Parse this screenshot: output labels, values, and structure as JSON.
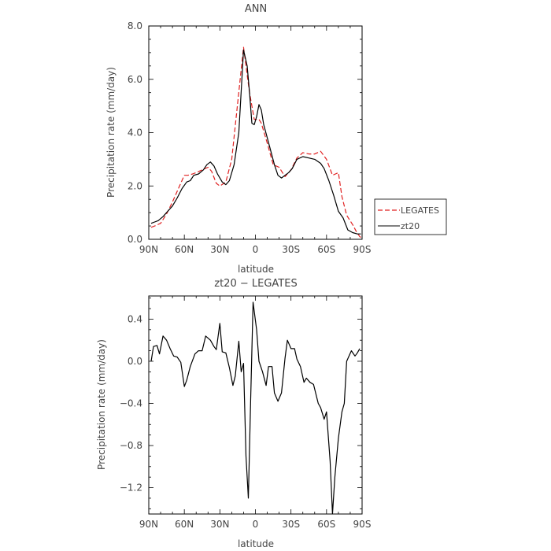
{
  "chart_data": [
    {
      "type": "line",
      "title": "ANN",
      "xlabel": "latitude",
      "ylabel": "Precipitation rate (mm/day)",
      "xlim": [
        90,
        -90
      ],
      "ylim": [
        0,
        8
      ],
      "x_ticks": [
        90,
        60,
        30,
        0,
        -30,
        -60,
        -90
      ],
      "x_tick_labels": [
        "90N",
        "60N",
        "30N",
        "0",
        "30S",
        "60S",
        "90S"
      ],
      "y_ticks": [
        0,
        2,
        4,
        6,
        8
      ],
      "y_tick_labels": [
        "0.0",
        "2.0",
        "4.0",
        "6.0",
        "8.0"
      ],
      "legend": "outside-right",
      "series": [
        {
          "name": "LEGATES",
          "style": "dashed",
          "color": "#e02020",
          "x": [
            88,
            85,
            80,
            75,
            70,
            65,
            60,
            57,
            53,
            50,
            45,
            40,
            37,
            33,
            30,
            25,
            20,
            15,
            10,
            5,
            1,
            -3,
            -5,
            -10,
            -15,
            -20,
            -25,
            -30,
            -35,
            -40,
            -45,
            -50,
            -55,
            -60,
            -65,
            -70,
            -73,
            -77,
            -82,
            -85,
            -88,
            -90
          ],
          "y": [
            0.45,
            0.5,
            0.6,
            0.95,
            1.4,
            1.9,
            2.4,
            2.4,
            2.45,
            2.5,
            2.6,
            2.7,
            2.55,
            2.1,
            2.0,
            2.15,
            3.0,
            5.1,
            7.2,
            5.5,
            4.5,
            4.5,
            4.35,
            3.6,
            2.8,
            2.7,
            2.35,
            2.6,
            3.05,
            3.25,
            3.2,
            3.2,
            3.3,
            3.0,
            2.4,
            2.5,
            1.6,
            0.9,
            0.55,
            0.3,
            0.1,
            0.05
          ]
        },
        {
          "name": "zt20",
          "style": "solid",
          "color": "#000000",
          "x": [
            88,
            85,
            82,
            78,
            74,
            70,
            66,
            62,
            58,
            55,
            52,
            48,
            44,
            41,
            38,
            35,
            32,
            28,
            25,
            22,
            18,
            14,
            10,
            7,
            5,
            3,
            1,
            -1,
            -3,
            -5,
            -7,
            -10,
            -13,
            -16,
            -19,
            -22,
            -25,
            -28,
            -31,
            -35,
            -40,
            -45,
            -50,
            -55,
            -58,
            -62,
            -66,
            -70,
            -74,
            -78,
            -82,
            -86,
            -89
          ],
          "y": [
            0.6,
            0.65,
            0.7,
            0.85,
            1.05,
            1.25,
            1.55,
            1.9,
            2.15,
            2.2,
            2.4,
            2.45,
            2.6,
            2.8,
            2.9,
            2.75,
            2.45,
            2.15,
            2.05,
            2.2,
            2.8,
            4.0,
            7.1,
            6.5,
            5.5,
            4.35,
            4.3,
            4.6,
            5.05,
            4.85,
            4.3,
            3.8,
            3.3,
            2.8,
            2.4,
            2.3,
            2.4,
            2.5,
            2.65,
            3.0,
            3.1,
            3.05,
            3.0,
            2.85,
            2.65,
            2.2,
            1.65,
            1.05,
            0.8,
            0.35,
            0.25,
            0.2,
            0.2
          ]
        }
      ]
    },
    {
      "type": "line",
      "title": "zt20 − LEGATES",
      "xlabel": "latitude",
      "ylabel": "Precipitation rate (mm/day)",
      "xlim": [
        90,
        -90
      ],
      "ylim": [
        -1.45,
        0.62
      ],
      "x_ticks": [
        90,
        60,
        30,
        0,
        -30,
        -60,
        -90
      ],
      "x_tick_labels": [
        "90N",
        "60N",
        "30N",
        "0",
        "30S",
        "60S",
        "90S"
      ],
      "y_ticks": [
        -1.2,
        -0.8,
        -0.4,
        0.0,
        0.4
      ],
      "y_tick_labels": [
        "−1.2",
        "−0.8",
        "−0.4",
        "0.0",
        "0.4"
      ],
      "series": [
        {
          "style": "solid",
          "color": "#000000",
          "x": [
            88,
            86,
            83,
            81,
            78,
            75,
            72,
            69,
            66,
            63,
            60,
            58,
            55,
            51,
            48,
            45,
            42,
            38,
            35,
            33,
            30,
            28,
            25,
            22,
            19,
            17,
            14,
            12,
            10,
            8,
            6,
            4,
            2,
            -1,
            -3,
            -6,
            -9,
            -11,
            -14,
            -16,
            -19,
            -22,
            -25,
            -27,
            -30,
            -33,
            -35,
            -38,
            -41,
            -43,
            -46,
            -49,
            -53,
            -55,
            -58,
            -60,
            -63,
            -65,
            -67,
            -70,
            -73,
            -75,
            -77,
            -79,
            -81,
            -84,
            -86,
            -88
          ],
          "y": [
            0.0,
            0.14,
            0.15,
            0.07,
            0.24,
            0.2,
            0.12,
            0.05,
            0.04,
            -0.01,
            -0.24,
            -0.18,
            -0.05,
            0.07,
            0.1,
            0.1,
            0.24,
            0.2,
            0.14,
            0.11,
            0.36,
            0.09,
            0.08,
            -0.06,
            -0.23,
            -0.14,
            0.19,
            -0.1,
            -0.02,
            -0.9,
            -1.3,
            -0.35,
            0.56,
            0.3,
            0.0,
            -0.1,
            -0.23,
            -0.05,
            -0.05,
            -0.3,
            -0.38,
            -0.3,
            0.03,
            0.2,
            0.12,
            0.12,
            0.02,
            -0.05,
            -0.2,
            -0.16,
            -0.2,
            -0.22,
            -0.4,
            -0.44,
            -0.55,
            -0.48,
            -0.95,
            -1.45,
            -1.1,
            -0.73,
            -0.48,
            -0.4,
            0.0,
            0.05,
            0.1,
            0.05,
            0.08,
            0.12
          ]
        }
      ]
    }
  ]
}
